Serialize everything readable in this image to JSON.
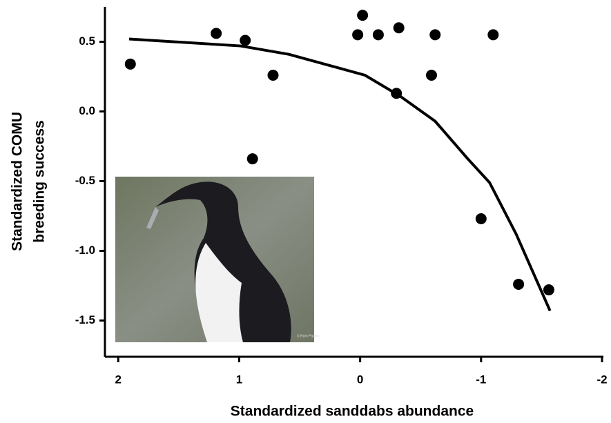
{
  "chart_data": {
    "type": "scatter",
    "xlabel": "Standardized sanddabs abundance",
    "ylabel": [
      "Standardized COMU",
      "breeding success"
    ],
    "xlim": [
      2.11,
      -2
    ],
    "xticks": [
      2,
      1,
      0,
      -1,
      -2
    ],
    "ylim": [
      -1.76,
      0.75
    ],
    "yticks": [
      0.5,
      {
        "value": 0,
        "label": "0.0"
      },
      -0.5,
      {
        "value": -1,
        "label": "-1.0"
      },
      -1.5
    ],
    "series": [
      {
        "type": "scatter",
        "color": "#000000",
        "x": [
          1.9,
          1.19,
          0.95,
          0.72,
          0.89,
          0.02,
          -0.02,
          -0.15,
          -0.32,
          -0.3,
          -0.59,
          -0.62,
          -1.1,
          -1.0,
          -1.31,
          -1.56
        ],
        "y": [
          0.34,
          0.56,
          0.51,
          0.26,
          -0.34,
          0.55,
          0.69,
          0.55,
          0.6,
          0.13,
          0.26,
          0.55,
          0.55,
          -0.77,
          -1.24,
          -1.28
        ]
      },
      {
        "type": "line",
        "color": "#000000",
        "x": [
          1.91,
          0.99,
          0.59,
          -0.04,
          -0.33,
          -0.62,
          -0.89,
          -1.07,
          -1.29,
          -1.57
        ],
        "y": [
          0.52,
          0.47,
          0.41,
          0.26,
          0.11,
          -0.07,
          -0.34,
          -0.51,
          -0.88,
          -1.43
        ]
      }
    ],
    "image_credit": "© Ram Papish"
  }
}
